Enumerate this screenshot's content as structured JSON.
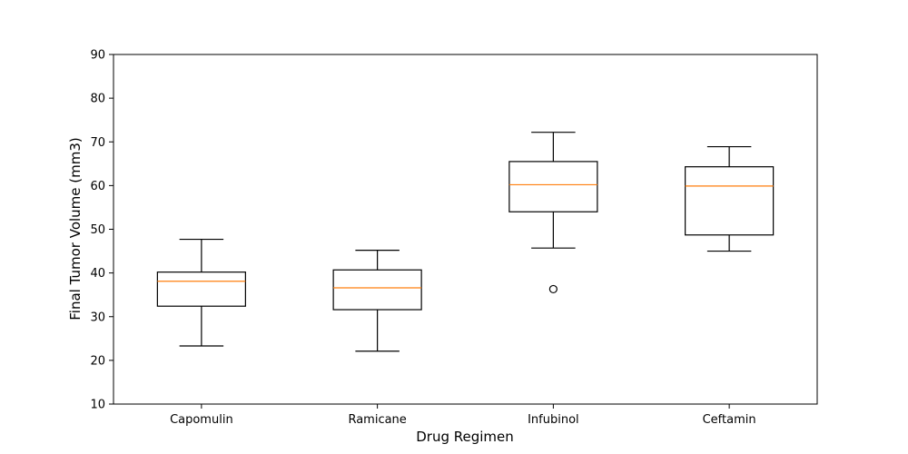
{
  "chart_data": {
    "type": "box",
    "title": "",
    "xlabel": "Drug Regimen",
    "ylabel": "Final Tumor Volume (mm3)",
    "ylim": [
      10,
      90
    ],
    "yticks": [
      10,
      20,
      30,
      40,
      50,
      60,
      70,
      80,
      90
    ],
    "grid": false,
    "categories": [
      "Capomulin",
      "Ramicane",
      "Infubinol",
      "Ceftamin"
    ],
    "boxes": [
      {
        "whisker_low": 23.3,
        "q1": 32.4,
        "median": 38.1,
        "q3": 40.2,
        "whisker_high": 47.7,
        "outliers": []
      },
      {
        "whisker_low": 22.1,
        "q1": 31.6,
        "median": 36.6,
        "q3": 40.7,
        "whisker_high": 45.2,
        "outliers": []
      },
      {
        "whisker_low": 45.7,
        "q1": 54.0,
        "median": 60.2,
        "q3": 65.5,
        "whisker_high": 72.2,
        "outliers": [
          36.3
        ]
      },
      {
        "whisker_low": 45.0,
        "q1": 48.7,
        "median": 59.9,
        "q3": 64.3,
        "whisker_high": 68.9,
        "outliers": []
      }
    ],
    "colors": {
      "box": "#000000",
      "median": "#ff7f0e",
      "outlier": "#000000"
    }
  }
}
